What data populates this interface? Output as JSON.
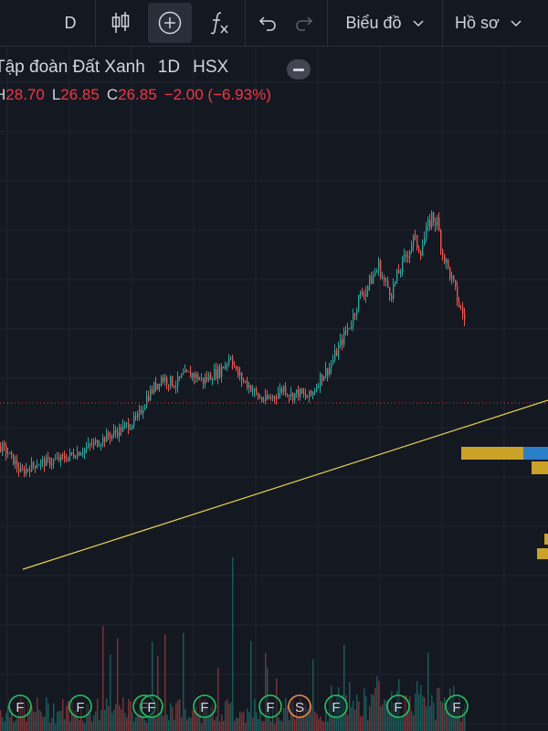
{
  "toolbar": {
    "interval": "D",
    "chart_type_icon": "candles-icon",
    "add_icon": "plus-circle-icon",
    "indicators_icon": "fx-icon",
    "undo_icon": "undo-icon",
    "redo_icon": "redo-icon",
    "chart_menu": "Biểu đồ",
    "profile_menu": "Hồ sơ"
  },
  "legend": {
    "name": "Tập đoàn Đất Xanh",
    "interval": "1D",
    "exchange": "HSX",
    "high_label": "H",
    "high": "28.70",
    "low_label": "L",
    "low": "26.85",
    "close_label": "C",
    "close": "26.85",
    "change": "−2.00 (−6.93%)"
  },
  "colors": {
    "up": "#26a69a",
    "down": "#ef5350",
    "trendline": "#e8d44d",
    "price_line": "#f23645",
    "volume_profile_gold": "#c9a227",
    "volume_profile_blue": "#2a7fc9"
  },
  "markers": [
    "F",
    "F",
    "F",
    "F",
    "F",
    "F",
    "S",
    "F",
    "F",
    "F"
  ],
  "chart_data": {
    "type": "candlestick",
    "series_shape": [
      [
        0,
        0.42
      ],
      [
        8,
        0.4
      ],
      [
        16,
        0.37
      ],
      [
        22,
        0.34
      ],
      [
        30,
        0.355
      ],
      [
        40,
        0.37
      ],
      [
        55,
        0.375
      ],
      [
        70,
        0.385
      ],
      [
        90,
        0.41
      ],
      [
        110,
        0.44
      ],
      [
        130,
        0.47
      ],
      [
        150,
        0.505
      ],
      [
        160,
        0.57
      ],
      [
        168,
        0.6
      ],
      [
        176,
        0.63
      ],
      [
        184,
        0.62
      ],
      [
        192,
        0.61
      ],
      [
        200,
        0.635
      ],
      [
        210,
        0.64
      ],
      [
        222,
        0.62
      ],
      [
        232,
        0.64
      ],
      [
        240,
        0.65
      ],
      [
        248,
        0.68
      ],
      [
        252,
        0.7
      ],
      [
        258,
        0.645
      ],
      [
        266,
        0.62
      ],
      [
        274,
        0.6
      ],
      [
        282,
        0.57
      ],
      [
        290,
        0.56
      ],
      [
        300,
        0.575
      ],
      [
        310,
        0.6
      ],
      [
        318,
        0.575
      ],
      [
        326,
        0.585
      ],
      [
        334,
        0.57
      ],
      [
        340,
        0.575
      ],
      [
        350,
        0.63
      ],
      [
        360,
        0.66
      ],
      [
        370,
        0.72
      ],
      [
        378,
        0.77
      ],
      [
        384,
        0.8
      ],
      [
        392,
        0.87
      ],
      [
        400,
        0.9
      ],
      [
        406,
        0.93
      ],
      [
        414,
        0.97
      ],
      [
        420,
        0.92
      ],
      [
        428,
        0.89
      ],
      [
        436,
        0.95
      ],
      [
        444,
        1.0
      ],
      [
        452,
        1.05
      ],
      [
        460,
        1.02
      ],
      [
        466,
        1.07
      ],
      [
        472,
        1.12
      ],
      [
        478,
        1.1
      ],
      [
        484,
        1.01
      ],
      [
        490,
        0.96
      ],
      [
        496,
        0.91
      ],
      [
        502,
        0.85
      ],
      [
        508,
        0.81
      ]
    ],
    "last_price": 26.85,
    "trendline": true
  }
}
